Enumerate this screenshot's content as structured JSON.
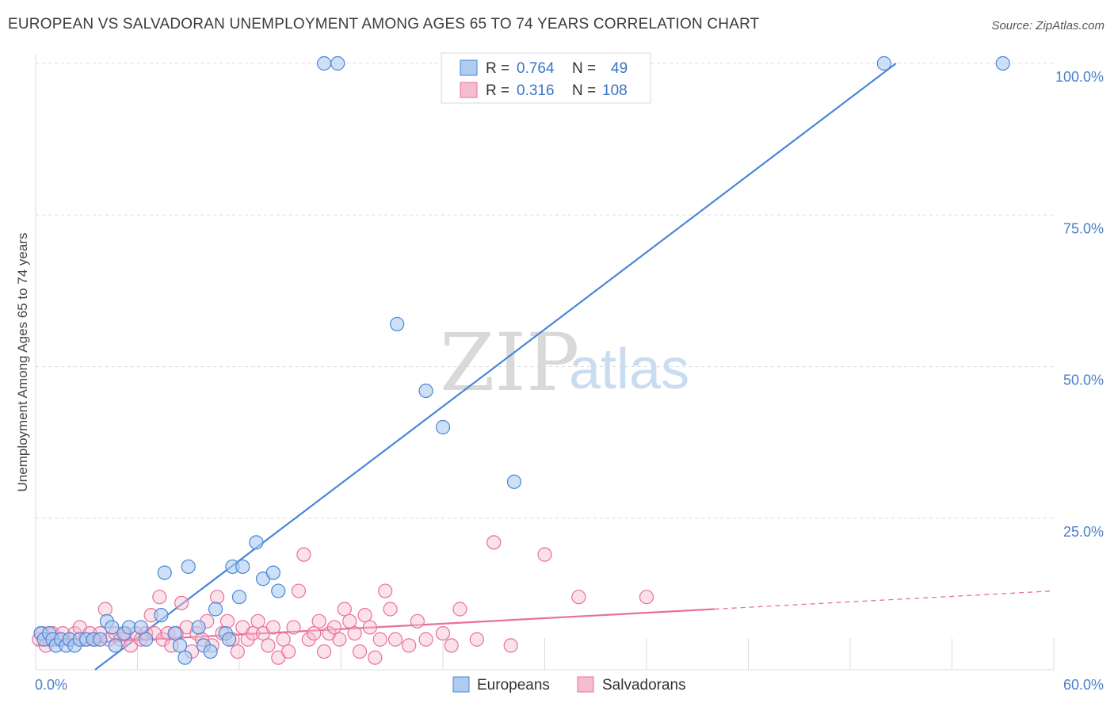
{
  "title": "EUROPEAN VS SALVADORAN UNEMPLOYMENT AMONG AGES 65 TO 74 YEARS CORRELATION CHART",
  "source": "Source: ZipAtlas.com",
  "watermark": {
    "part1": "ZIP",
    "part2": "atlas"
  },
  "colors": {
    "europeans": "#4a86d8",
    "europeans_fill": "#aecbf0",
    "salvadorans": "#e8709a",
    "salvadorans_fill": "#f6bcd0",
    "grid": "#dcdcdc",
    "tick": "#4a7fc8"
  },
  "legend": {
    "r_label": "R =",
    "n_label": "N =",
    "europeans": {
      "r": "0.764",
      "n": "49"
    },
    "salvadorans": {
      "r": "0.316",
      "n": "108"
    }
  },
  "chart_data": {
    "type": "scatter",
    "title": "EUROPEAN VS SALVADORAN UNEMPLOYMENT AMONG AGES 65 TO 74 YEARS CORRELATION CHART",
    "xlabel": "",
    "ylabel": "Unemployment Among Ages 65 to 74 years",
    "xlim": [
      0,
      60
    ],
    "ylim": [
      0,
      100
    ],
    "x_tick_labels": [
      "0.0%",
      "60.0%"
    ],
    "y_ticks": [
      25,
      50,
      75,
      100
    ],
    "y_tick_labels": [
      "25.0%",
      "50.0%",
      "75.0%",
      "100.0%"
    ],
    "series": [
      {
        "name": "Europeans",
        "points": [
          [
            0.3,
            6
          ],
          [
            0.5,
            5
          ],
          [
            0.8,
            6
          ],
          [
            1.0,
            5
          ],
          [
            1.2,
            4
          ],
          [
            1.5,
            5
          ],
          [
            1.8,
            4
          ],
          [
            2.0,
            5
          ],
          [
            2.3,
            4
          ],
          [
            2.6,
            5
          ],
          [
            3.0,
            5
          ],
          [
            3.4,
            5
          ],
          [
            3.8,
            5
          ],
          [
            4.2,
            8
          ],
          [
            4.5,
            7
          ],
          [
            4.7,
            4
          ],
          [
            5.2,
            6
          ],
          [
            5.5,
            7
          ],
          [
            6.2,
            7
          ],
          [
            6.5,
            5
          ],
          [
            7.4,
            9
          ],
          [
            7.6,
            16
          ],
          [
            8.2,
            6
          ],
          [
            8.5,
            4
          ],
          [
            8.8,
            2
          ],
          [
            9.0,
            17
          ],
          [
            9.6,
            7
          ],
          [
            9.9,
            4
          ],
          [
            10.3,
            3
          ],
          [
            10.6,
            10
          ],
          [
            11.2,
            6
          ],
          [
            11.4,
            5
          ],
          [
            11.6,
            17
          ],
          [
            12.0,
            12
          ],
          [
            12.2,
            17
          ],
          [
            13.0,
            21
          ],
          [
            13.4,
            15
          ],
          [
            14.0,
            16
          ],
          [
            14.3,
            13
          ],
          [
            17.0,
            100
          ],
          [
            17.8,
            100
          ],
          [
            21.3,
            57
          ],
          [
            23.0,
            46
          ],
          [
            24.0,
            40
          ],
          [
            28.2,
            31
          ],
          [
            50.0,
            100
          ],
          [
            57.0,
            100
          ]
        ],
        "trend": {
          "x1": 3.5,
          "y1": 0,
          "x2": 50.7,
          "y2": 100
        }
      },
      {
        "name": "Salvadorans",
        "points": [
          [
            0.2,
            5
          ],
          [
            0.4,
            6
          ],
          [
            0.6,
            4
          ],
          [
            0.8,
            5
          ],
          [
            1.0,
            6
          ],
          [
            1.3,
            5
          ],
          [
            1.6,
            6
          ],
          [
            2.0,
            5
          ],
          [
            2.3,
            6
          ],
          [
            2.6,
            7
          ],
          [
            2.9,
            5
          ],
          [
            3.2,
            6
          ],
          [
            3.5,
            5
          ],
          [
            3.8,
            6
          ],
          [
            4.1,
            10
          ],
          [
            4.3,
            5
          ],
          [
            4.7,
            6
          ],
          [
            5.0,
            5
          ],
          [
            5.3,
            6
          ],
          [
            5.6,
            4
          ],
          [
            5.9,
            6
          ],
          [
            6.2,
            5
          ],
          [
            6.5,
            6
          ],
          [
            6.8,
            9
          ],
          [
            7.0,
            6
          ],
          [
            7.3,
            12
          ],
          [
            7.5,
            5
          ],
          [
            7.8,
            6
          ],
          [
            8.0,
            4
          ],
          [
            8.3,
            6
          ],
          [
            8.6,
            11
          ],
          [
            8.9,
            7
          ],
          [
            9.2,
            3
          ],
          [
            9.5,
            6
          ],
          [
            9.8,
            5
          ],
          [
            10.1,
            8
          ],
          [
            10.4,
            4
          ],
          [
            10.7,
            12
          ],
          [
            11.0,
            6
          ],
          [
            11.3,
            8
          ],
          [
            11.6,
            5
          ],
          [
            11.9,
            3
          ],
          [
            12.2,
            7
          ],
          [
            12.5,
            5
          ],
          [
            12.8,
            6
          ],
          [
            13.1,
            8
          ],
          [
            13.4,
            6
          ],
          [
            13.7,
            4
          ],
          [
            14.0,
            7
          ],
          [
            14.3,
            2
          ],
          [
            14.6,
            5
          ],
          [
            14.9,
            3
          ],
          [
            15.2,
            7
          ],
          [
            15.5,
            13
          ],
          [
            15.8,
            19
          ],
          [
            16.1,
            5
          ],
          [
            16.4,
            6
          ],
          [
            16.7,
            8
          ],
          [
            17.0,
            3
          ],
          [
            17.3,
            6
          ],
          [
            17.6,
            7
          ],
          [
            17.9,
            5
          ],
          [
            18.2,
            10
          ],
          [
            18.5,
            8
          ],
          [
            18.8,
            6
          ],
          [
            19.1,
            3
          ],
          [
            19.4,
            9
          ],
          [
            19.7,
            7
          ],
          [
            20.0,
            2
          ],
          [
            20.3,
            5
          ],
          [
            20.6,
            13
          ],
          [
            20.9,
            10
          ],
          [
            21.2,
            5
          ],
          [
            22.0,
            4
          ],
          [
            22.5,
            8
          ],
          [
            23.0,
            5
          ],
          [
            24.0,
            6
          ],
          [
            24.5,
            4
          ],
          [
            25.0,
            10
          ],
          [
            26.0,
            5
          ],
          [
            27.0,
            21
          ],
          [
            28.0,
            4
          ],
          [
            30.0,
            19
          ],
          [
            32.0,
            12
          ],
          [
            36.0,
            12
          ]
        ],
        "trend": {
          "x1": 0,
          "y1": 4,
          "x2": 40,
          "y2": 10
        },
        "trend_dashed": {
          "x1": 40,
          "y1": 10,
          "x2": 60,
          "y2": 13
        }
      }
    ]
  },
  "bottom_legend": {
    "europeans": "Europeans",
    "salvadorans": "Salvadorans"
  }
}
